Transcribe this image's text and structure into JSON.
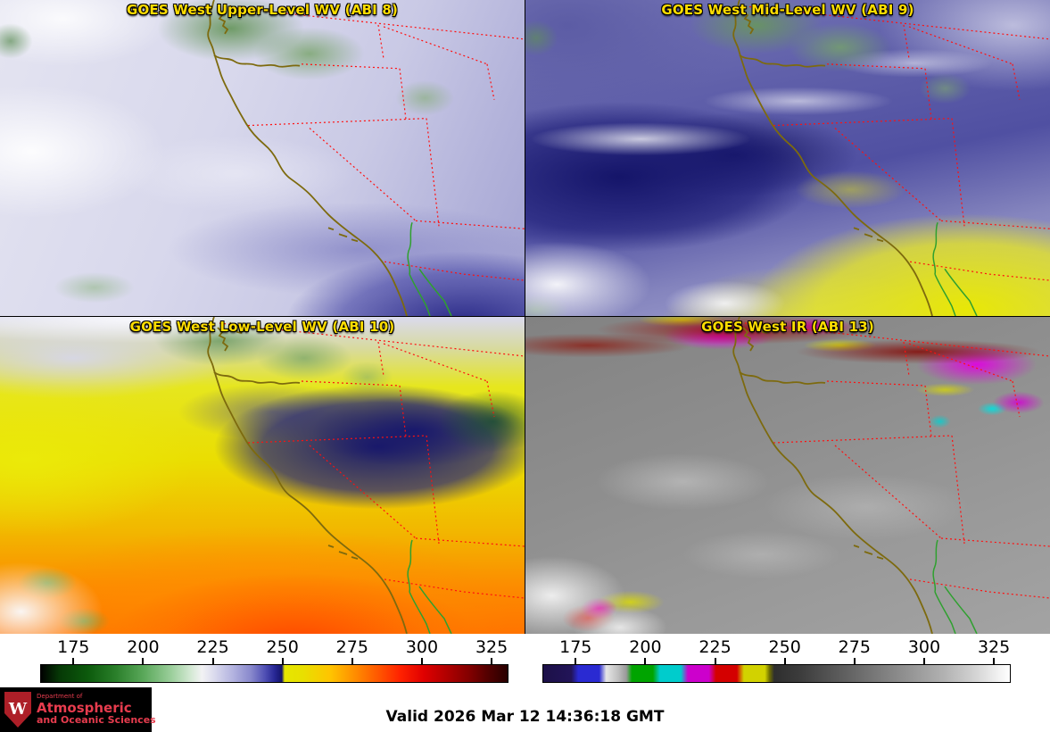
{
  "panels": [
    {
      "title": "GOES West Upper-Level WV (ABI 8)"
    },
    {
      "title": "GOES West Mid-Level WV (ABI 9)"
    },
    {
      "title": "GOES West Low-Level WV (ABI 10)"
    },
    {
      "title": "GOES West IR (ABI 13)"
    }
  ],
  "colorbars": {
    "tick_labels": [
      175,
      200,
      225,
      250,
      275,
      300,
      325
    ],
    "wv_colors": [
      "#000000",
      "#0c5a0c",
      "#9ccf9c",
      "#f2f2f4",
      "#8888cc",
      "#14146a",
      "#e6e600",
      "#ff9000",
      "#ff2200",
      "#b00000",
      "#280000"
    ],
    "ir_colors": [
      "#1c1048",
      "#2a2ad2",
      "#e6e6e6",
      "#00a400",
      "#00cccc",
      "#cc00cc",
      "#d40000",
      "#d2d200",
      "#2e2e2e",
      "#929292",
      "#ffffff"
    ]
  },
  "map_overlay": {
    "coastline_color": "#7d6a0e",
    "state_border_color": "#ff1010",
    "river_color": "#2fa02f"
  },
  "title_color": "#ffdd00",
  "footer": {
    "valid_text": "Valid 2026 Mar 12 14:36:18 GMT"
  },
  "logo": {
    "crest_letter": "W",
    "line1": "Department of",
    "line2": "Atmospheric",
    "line3": "and Oceanic Sciences"
  }
}
